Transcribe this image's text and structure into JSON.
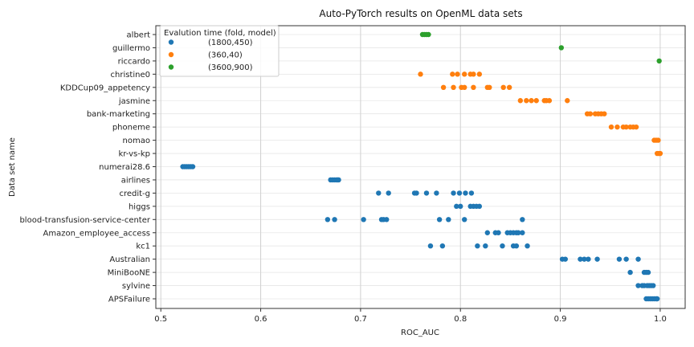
{
  "chart_data": {
    "type": "scatter",
    "title": "Auto-PyTorch results on OpenML data sets",
    "xlabel": "ROC_AUC",
    "ylabel": "Data set name",
    "xlim": [
      0.495,
      1.025
    ],
    "xticks": [
      0.5,
      0.6,
      0.7,
      0.8,
      0.9,
      1.0
    ],
    "xtick_labels": [
      "0.5",
      "0.6",
      "0.7",
      "0.8",
      "0.9",
      "1.0"
    ],
    "grid": "vertical lines on, light horizontal row lines",
    "legend_placement": "top-left",
    "legend_title": "Evalution time (fold, model)",
    "categories": [
      "albert",
      "guillermo",
      "riccardo",
      "christine0",
      "KDDCup09_appetency",
      "jasmine",
      "bank-marketing",
      "phoneme",
      "nomao",
      "kr-vs-kp",
      "numerai28.6",
      "airlines",
      "credit-g",
      "higgs",
      "blood-transfusion-service-center",
      "Amazon_employee_access",
      "kc1",
      "Australian",
      "MiniBooNE",
      "sylvine",
      "APSFailure"
    ],
    "series": [
      {
        "name": "(1800,450)",
        "color": "#1f77b4",
        "points": [
          {
            "y": "numerai28.6",
            "x": [
              0.522,
              0.524,
              0.526,
              0.528,
              0.53,
              0.532
            ]
          },
          {
            "y": "airlines",
            "x": [
              0.67,
              0.672,
              0.674,
              0.676,
              0.677,
              0.678
            ]
          },
          {
            "y": "credit-g",
            "x": [
              0.718,
              0.728,
              0.754,
              0.756,
              0.766,
              0.776,
              0.793,
              0.799,
              0.805,
              0.811
            ]
          },
          {
            "y": "higgs",
            "x": [
              0.796,
              0.8,
              0.81,
              0.813,
              0.816,
              0.819
            ]
          },
          {
            "y": "blood-transfusion-service-center",
            "x": [
              0.667,
              0.674,
              0.703,
              0.721,
              0.723,
              0.726,
              0.779,
              0.788,
              0.804,
              0.862
            ]
          },
          {
            "y": "Amazon_employee_access",
            "x": [
              0.827,
              0.835,
              0.838,
              0.847,
              0.85,
              0.853,
              0.856,
              0.858,
              0.862
            ]
          },
          {
            "y": "kc1",
            "x": [
              0.77,
              0.782,
              0.817,
              0.825,
              0.842,
              0.853,
              0.856,
              0.867
            ]
          },
          {
            "y": "Australian",
            "x": [
              0.902,
              0.905,
              0.92,
              0.924,
              0.928,
              0.937,
              0.959,
              0.966,
              0.978
            ]
          },
          {
            "y": "MiniBooNE",
            "x": [
              0.97,
              0.984,
              0.986,
              0.988
            ]
          },
          {
            "y": "sylvine",
            "x": [
              0.978,
              0.982,
              0.984,
              0.987,
              0.989,
              0.991,
              0.993
            ]
          },
          {
            "y": "APSFailure",
            "x": [
              0.986,
              0.988,
              0.99,
              0.992,
              0.994,
              0.996,
              0.997
            ]
          }
        ]
      },
      {
        "name": "(360,40)",
        "color": "#ff7f0e",
        "points": [
          {
            "y": "christine0",
            "x": [
              0.76,
              0.792,
              0.797,
              0.804,
              0.81,
              0.813,
              0.819
            ]
          },
          {
            "y": "KDDCup09_appetency",
            "x": [
              0.783,
              0.793,
              0.801,
              0.804,
              0.813,
              0.827,
              0.829,
              0.843,
              0.849
            ]
          },
          {
            "y": "jasmine",
            "x": [
              0.86,
              0.866,
              0.871,
              0.876,
              0.884,
              0.886,
              0.889,
              0.907
            ]
          },
          {
            "y": "bank-marketing",
            "x": [
              0.927,
              0.93,
              0.935,
              0.938,
              0.941,
              0.944
            ]
          },
          {
            "y": "phoneme",
            "x": [
              0.951,
              0.957,
              0.963,
              0.966,
              0.97,
              0.973,
              0.976
            ]
          },
          {
            "y": "nomao",
            "x": [
              0.994,
              0.996,
              0.998
            ]
          },
          {
            "y": "kr-vs-kp",
            "x": [
              0.997,
              0.999,
              1.0
            ]
          }
        ]
      },
      {
        "name": "(3600,900)",
        "color": "#2ca02c",
        "points": [
          {
            "y": "albert",
            "x": [
              0.762,
              0.764,
              0.766,
              0.768
            ]
          },
          {
            "y": "guillermo",
            "x": [
              0.901
            ]
          },
          {
            "y": "riccardo",
            "x": [
              0.999
            ]
          }
        ]
      }
    ]
  }
}
